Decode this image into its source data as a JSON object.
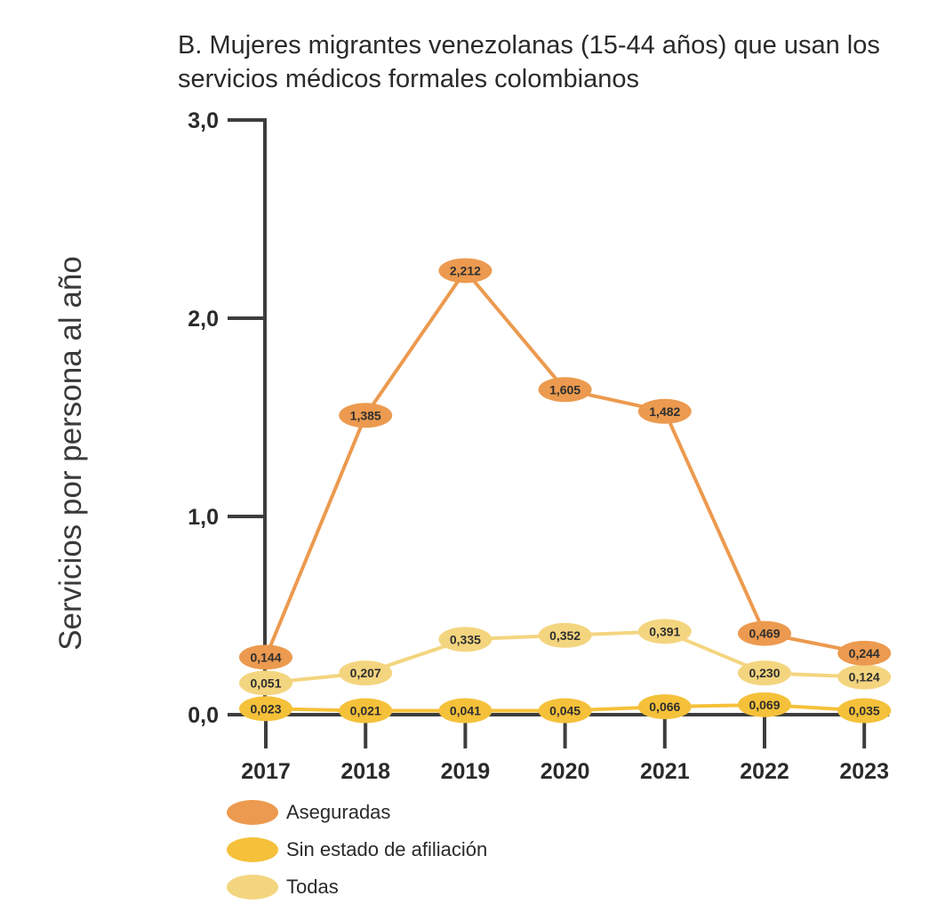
{
  "chart_data": {
    "type": "line",
    "title": "B. Mujeres migrantes venezolanas (15-44 años) que usan los servicios médicos formales colombianos",
    "ylabel": "Servicios por persona al año",
    "xlabel": "",
    "ylim": [
      0,
      3
    ],
    "yticks": [
      "0,0",
      "1,0",
      "2,0",
      "3,0"
    ],
    "ytick_values": [
      0,
      1,
      2,
      3
    ],
    "categories": [
      "2017",
      "2018",
      "2019",
      "2020",
      "2021",
      "2022",
      "2023"
    ],
    "series": [
      {
        "name": "Aseguradas",
        "color": "#ec9a4f",
        "values": [
          0.144,
          1.385,
          2.212,
          1.605,
          1.482,
          0.469,
          0.244
        ],
        "plot_values": [
          0.29,
          1.51,
          2.24,
          1.64,
          1.53,
          0.41,
          0.31
        ],
        "labels": [
          "0,144",
          "1,385",
          "2,212",
          "1,605",
          "1,482",
          "0,469",
          "0,244"
        ]
      },
      {
        "name": "Sin estado de afiliación",
        "color": "#f5c13a",
        "values": [
          0.023,
          0.021,
          0.041,
          0.045,
          0.066,
          0.069,
          0.035
        ],
        "plot_values": [
          0.03,
          0.02,
          0.02,
          0.02,
          0.04,
          0.05,
          0.02
        ],
        "labels": [
          "0,023",
          "0,021",
          "0,041",
          "0,045",
          "0,066",
          "0,069",
          "0,035"
        ]
      },
      {
        "name": "Todas",
        "color": "#f4d57f",
        "values": [
          0.051,
          0.207,
          0.335,
          0.352,
          0.391,
          0.23,
          0.124
        ],
        "plot_values": [
          0.16,
          0.21,
          0.38,
          0.4,
          0.42,
          0.21,
          0.19
        ],
        "labels": [
          "0,051",
          "0,207",
          "0,335",
          "0,352",
          "0,391",
          "0,230",
          "0,124"
        ]
      }
    ],
    "legend_position": "bottom-left",
    "grid": false
  }
}
